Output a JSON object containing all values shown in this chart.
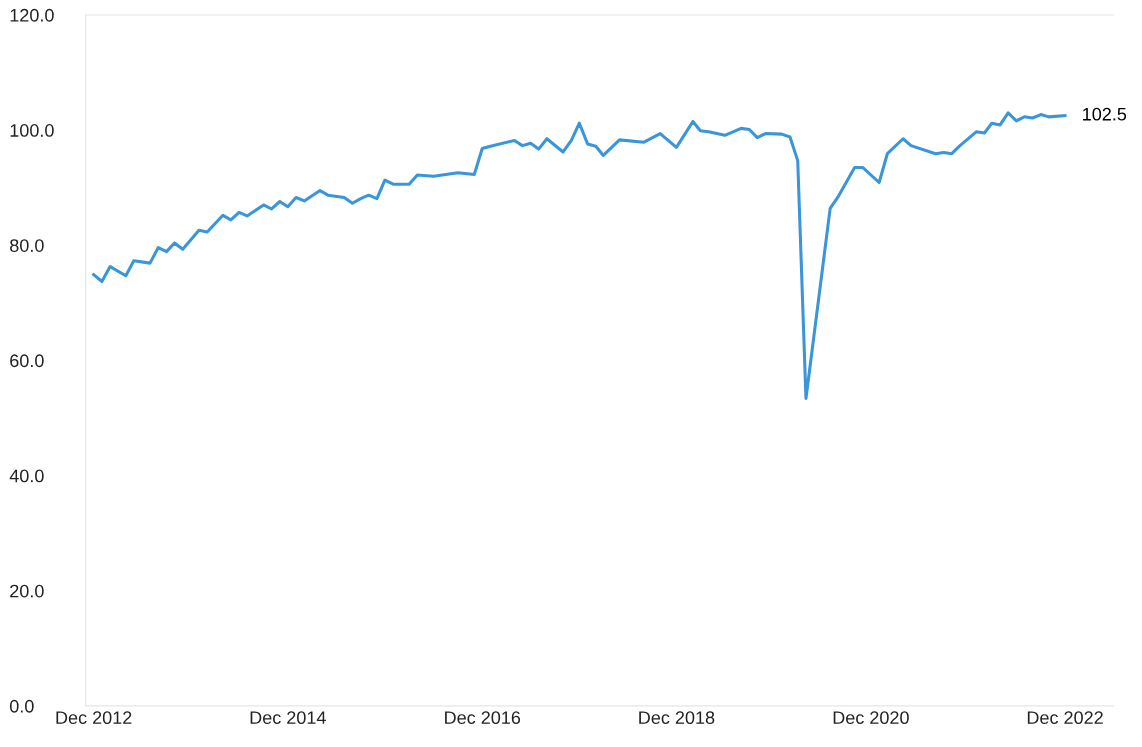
{
  "chart_data": {
    "type": "line",
    "x": [
      "2012-12",
      "2013-01",
      "2013-02",
      "2013-04",
      "2013-05",
      "2013-07",
      "2013-08",
      "2013-09",
      "2013-10",
      "2013-11",
      "2014-01",
      "2014-02",
      "2014-04",
      "2014-05",
      "2014-06",
      "2014-07",
      "2014-09",
      "2014-10",
      "2014-11",
      "2014-12",
      "2015-01",
      "2015-02",
      "2015-04",
      "2015-05",
      "2015-07",
      "2015-08",
      "2015-09",
      "2015-10",
      "2015-11",
      "2015-12",
      "2016-01",
      "2016-03",
      "2016-04",
      "2016-06",
      "2016-09",
      "2016-11",
      "2016-12",
      "2017-01",
      "2017-04",
      "2017-05",
      "2017-06",
      "2017-07",
      "2017-08",
      "2017-10",
      "2017-11",
      "2017-12",
      "2018-01",
      "2018-02",
      "2018-03",
      "2018-05",
      "2018-08",
      "2018-10",
      "2018-12",
      "2019-02",
      "2019-03",
      "2019-04",
      "2019-06",
      "2019-08",
      "2019-09",
      "2019-10",
      "2019-11",
      "2020-01",
      "2020-02",
      "2020-03",
      "2020-04",
      "2020-07",
      "2020-08",
      "2020-10",
      "2020-11",
      "2021-01",
      "2021-02",
      "2021-04",
      "2021-05",
      "2021-08",
      "2021-09",
      "2021-10",
      "2021-11",
      "2022-01",
      "2022-02",
      "2022-03",
      "2022-04",
      "2022-05",
      "2022-06",
      "2022-07",
      "2022-08",
      "2022-09",
      "2022-10",
      "2022-12"
    ],
    "series": [
      {
        "color": "#3a96d8",
        "values": [
          74.9,
          73.7,
          76.3,
          74.7,
          77.3,
          76.9,
          79.6,
          78.9,
          80.4,
          79.3,
          82.6,
          82.3,
          85.2,
          84.4,
          85.7,
          85.1,
          87.0,
          86.3,
          87.6,
          86.7,
          88.3,
          87.7,
          89.5,
          88.7,
          88.3,
          87.3,
          88.1,
          88.7,
          88.1,
          91.3,
          90.6,
          90.6,
          92.2,
          92.0,
          92.6,
          92.3,
          96.8,
          97.2,
          98.2,
          97.3,
          97.7,
          96.7,
          98.5,
          96.2,
          98.2,
          101.2,
          97.6,
          97.2,
          95.6,
          98.3,
          97.9,
          99.4,
          97.0,
          101.5,
          99.9,
          99.7,
          99.1,
          100.3,
          100.1,
          98.7,
          99.4,
          99.3,
          98.8,
          94.7,
          53.4,
          86.4,
          88.5,
          93.5,
          93.5,
          90.9,
          95.9,
          98.5,
          97.3,
          95.9,
          96.1,
          95.9,
          97.3,
          99.7,
          99.5,
          101.2,
          100.9,
          103.0,
          101.6,
          102.3,
          102.1,
          102.7,
          102.3,
          102.5
        ]
      }
    ],
    "xlim": [
      "2012-11",
      "2023-06"
    ],
    "xticks": [
      {
        "value": "2012-12",
        "label": "Dec 2012"
      },
      {
        "value": "2014-12",
        "label": "Dec 2014"
      },
      {
        "value": "2016-12",
        "label": "Dec 2016"
      },
      {
        "value": "2018-12",
        "label": "Dec 2018"
      },
      {
        "value": "2020-12",
        "label": "Dec 2020"
      },
      {
        "value": "2022-12",
        "label": "Dec 2022"
      }
    ],
    "ylim": [
      0,
      120
    ],
    "yticks": [
      {
        "value": 0,
        "label": "0.0"
      },
      {
        "value": 20,
        "label": "20.0"
      },
      {
        "value": 40,
        "label": "40.0"
      },
      {
        "value": 60,
        "label": "60.0"
      },
      {
        "value": 80,
        "label": "80.0"
      },
      {
        "value": 100,
        "label": "100.0"
      },
      {
        "value": 120,
        "label": "120.0"
      }
    ],
    "annotations": [
      {
        "text": "102.5",
        "x": "2022-12",
        "y": 102.5
      }
    ],
    "grid": false,
    "legend": false,
    "marker": "none",
    "line_style": "solid"
  }
}
